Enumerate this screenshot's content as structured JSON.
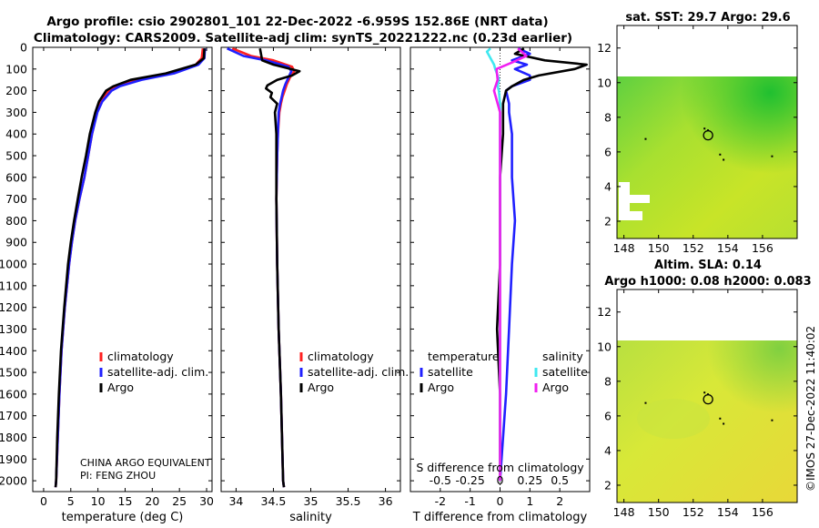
{
  "titles": {
    "line1": "Argo profile: csio 2902801_101 22-Dec-2022 -6.959S 152.86E (NRT data)",
    "line2": "Climatology: CARS2009. Satellite-adj clim: synTS_20221222.nc (0.23d earlier)"
  },
  "credit": {
    "line1": "CHINA ARGO EQUIVALENT",
    "line2": "PI: FENG ZHOU",
    "imos": "©IMOS 27-Dec-2022 11:40:02"
  },
  "colors": {
    "climatology": "#ff2020",
    "satellite_adj": "#2020ff",
    "argo": "#000000",
    "sal_satellite": "#40e8f0",
    "sal_argo": "#f020f0"
  },
  "chart_data": [
    {
      "id": "temperature",
      "type": "line",
      "xlabel": "temperature (deg C)",
      "ylabel": "",
      "xlim": [
        -2,
        31
      ],
      "ylim": [
        2050,
        0
      ],
      "xticks": [
        0,
        5,
        10,
        15,
        20,
        25,
        30
      ],
      "yticks": [
        0,
        100,
        200,
        300,
        400,
        500,
        600,
        700,
        800,
        900,
        1000,
        1100,
        1200,
        1300,
        1400,
        1500,
        1600,
        1700,
        1800,
        1900,
        2000
      ],
      "legend": [
        "climatology",
        "satellite-adj. clim.",
        "Argo"
      ],
      "series": [
        {
          "name": "climatology",
          "depth": [
            5,
            50,
            80,
            120,
            150,
            180,
            200,
            250,
            300,
            400,
            500,
            600,
            700,
            800,
            900,
            1000,
            1200,
            1400,
            1600,
            1800,
            2000,
            2030
          ],
          "values": [
            29.3,
            29.1,
            28,
            23,
            17,
            13.5,
            12,
            10.5,
            9.8,
            8.9,
            8.2,
            7.5,
            6.6,
            5.8,
            5.2,
            4.7,
            3.9,
            3.3,
            2.9,
            2.6,
            2.3,
            2.2
          ]
        },
        {
          "name": "satellite-adj. clim.",
          "depth": [
            5,
            50,
            80,
            120,
            150,
            180,
            200,
            250,
            300,
            400,
            500,
            600,
            700,
            800,
            900,
            1000,
            1200,
            1400,
            1600,
            1800,
            2000,
            2030
          ],
          "values": [
            29.7,
            29.6,
            28.5,
            24,
            18,
            14,
            12.5,
            10.8,
            9.9,
            8.9,
            8.2,
            7.5,
            6.6,
            5.8,
            5.2,
            4.7,
            3.9,
            3.3,
            2.9,
            2.6,
            2.3,
            2.2
          ]
        },
        {
          "name": "Argo",
          "depth": [
            5,
            50,
            80,
            120,
            150,
            180,
            200,
            250,
            300,
            400,
            500,
            600,
            700,
            800,
            900,
            1000,
            1200,
            1400,
            1600,
            1800,
            2000,
            2030
          ],
          "values": [
            29.6,
            29.5,
            28,
            22.5,
            16,
            12.8,
            11.5,
            10.2,
            9.5,
            8.5,
            7.8,
            7.0,
            6.3,
            5.6,
            5.0,
            4.5,
            3.8,
            3.2,
            2.8,
            2.5,
            2.3,
            2.2
          ]
        }
      ]
    },
    {
      "id": "salinity",
      "type": "line",
      "xlabel": "salinity",
      "xlim": [
        33.8,
        36.2
      ],
      "ylim": [
        2050,
        0
      ],
      "xticks": [
        34,
        34.5,
        35,
        35.5,
        36
      ],
      "legend": [
        "climatology",
        "satellite-adj. clim.",
        "Argo"
      ],
      "series": [
        {
          "name": "climatology",
          "depth": [
            5,
            40,
            60,
            90,
            110,
            140,
            170,
            200,
            230,
            260,
            300,
            400,
            500,
            700,
            1000,
            1300,
            1600,
            2000,
            2030
          ],
          "values": [
            33.95,
            34.2,
            34.5,
            34.75,
            34.78,
            34.72,
            34.68,
            34.65,
            34.62,
            34.6,
            34.58,
            34.56,
            34.55,
            34.54,
            34.55,
            34.57,
            34.6,
            34.63,
            34.64
          ]
        },
        {
          "name": "satellite-adj. clim.",
          "depth": [
            5,
            40,
            60,
            90,
            110,
            140,
            170,
            200,
            230,
            260,
            300,
            400,
            500,
            700,
            1000,
            1300,
            1600,
            2000,
            2030
          ],
          "values": [
            33.88,
            34.1,
            34.4,
            34.7,
            34.74,
            34.7,
            34.66,
            34.63,
            34.61,
            34.59,
            34.57,
            34.56,
            34.55,
            34.54,
            34.55,
            34.57,
            34.6,
            34.63,
            34.64
          ]
        },
        {
          "name": "Argo",
          "depth": [
            5,
            60,
            80,
            110,
            130,
            150,
            175,
            190,
            210,
            230,
            260,
            300,
            400,
            500,
            700,
            1000,
            1300,
            1600,
            2000,
            2030
          ],
          "values": [
            34.32,
            34.35,
            34.5,
            34.85,
            34.75,
            34.55,
            34.42,
            34.4,
            34.48,
            34.46,
            34.55,
            34.52,
            34.54,
            34.54,
            34.54,
            34.55,
            34.57,
            34.6,
            34.63,
            34.64
          ]
        }
      ]
    },
    {
      "id": "difference",
      "type": "line",
      "xlabel": "T difference from climatology",
      "x2label": "S difference from climatology",
      "xlim": [
        -3,
        3
      ],
      "ylim": [
        2050,
        0
      ],
      "xticks": [
        -2,
        -1,
        0,
        1,
        2
      ],
      "x2ticks": [
        "-0.5",
        "-0.25",
        "0",
        "0.25",
        "0.5"
      ],
      "legend_temperature_title": "temperature",
      "legend_salinity_title": "salinity",
      "legend_temperature": [
        "satellite",
        "Argo"
      ],
      "legend_salinity": [
        "satellite",
        "Argo"
      ],
      "series": [
        {
          "name": "T satellite",
          "depth": [
            5,
            30,
            60,
            80,
            100,
            130,
            150,
            180,
            200,
            260,
            300,
            400,
            600,
            800,
            1000,
            1300,
            1600,
            2000
          ],
          "values": [
            0.6,
            1.0,
            0.4,
            0.9,
            0.5,
            1.0,
            1.0,
            0.4,
            0.2,
            0.3,
            0.3,
            0.4,
            0.4,
            0.5,
            0.4,
            0.3,
            0.2,
            0.0
          ]
        },
        {
          "name": "T Argo",
          "depth": [
            5,
            30,
            60,
            80,
            100,
            130,
            150,
            180,
            200,
            260,
            300,
            400,
            600,
            800,
            1000,
            1300,
            1600,
            2000
          ],
          "values": [
            0.8,
            0.5,
            1.5,
            2.9,
            2.5,
            1.3,
            0.8,
            0.4,
            0.2,
            0.1,
            0.1,
            0.1,
            0.0,
            0.0,
            0.0,
            -0.1,
            0.0,
            0.0
          ]
        },
        {
          "name": "S satellite",
          "depth": [
            5,
            20,
            50,
            80,
            100,
            130,
            150,
            180,
            200,
            260,
            300,
            400,
            600,
            800,
            1000,
            1300,
            1600,
            2000
          ],
          "values": [
            -0.08,
            -0.11,
            -0.08,
            -0.05,
            -0.04,
            -0.02,
            -0.01,
            -0.02,
            -0.01,
            0.0,
            0.0,
            0.0,
            0.0,
            0.0,
            0.0,
            0.0,
            0.0,
            0.0
          ]
        },
        {
          "name": "S Argo",
          "depth": [
            5,
            40,
            70,
            100,
            150,
            200,
            260,
            300,
            400,
            600,
            800,
            1000,
            1300,
            1600,
            2000
          ],
          "values": [
            0.15,
            0.22,
            0.1,
            -0.03,
            -0.02,
            -0.05,
            -0.02,
            0.0,
            0.0,
            0.0,
            0.0,
            0.0,
            0.0,
            0.0,
            0.0
          ]
        }
      ]
    },
    {
      "id": "sst_map",
      "type": "heatmap",
      "title": "sat. SST: 29.7 Argo: 29.6",
      "xticks": [
        148,
        150,
        152,
        154,
        156
      ],
      "yticks": [
        2,
        4,
        6,
        8,
        10,
        12
      ],
      "xlim": [
        147.6,
        158
      ],
      "ylim": [
        1,
        13.3
      ],
      "marker": [
        152.86,
        6.96
      ]
    },
    {
      "id": "sla_map",
      "type": "heatmap",
      "title": "Altim. SLA: 0.14",
      "subtitle": "Argo h1000: 0.08 h2000: 0.083",
      "xticks": [
        148,
        150,
        152,
        154,
        156
      ],
      "yticks": [
        2,
        4,
        6,
        8,
        10,
        12
      ],
      "xlim": [
        147.6,
        158
      ],
      "ylim": [
        1,
        13.3
      ],
      "marker": [
        152.86,
        6.96
      ]
    }
  ]
}
